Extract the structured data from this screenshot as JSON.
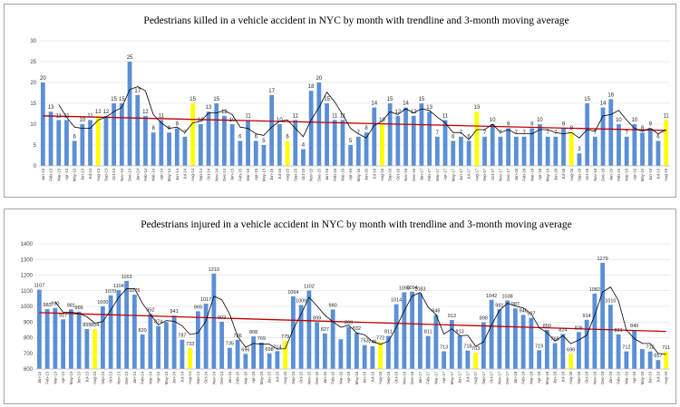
{
  "colors": {
    "bar": "#5b8fd6",
    "highlight": "#ffff00",
    "trend": "#c00000",
    "moving_avg": "#000000",
    "grid": "#d9d9d9"
  },
  "chart_data": [
    {
      "type": "bar",
      "title": "Pedestrians killed in a vehicle accident  in NYC  by month with trendline and 3-month moving average",
      "categories": [
        "Jan-13",
        "Feb-13",
        "Mar-13",
        "Apr-13",
        "May-13",
        "Jun-13",
        "Jul-13",
        "Aug-13",
        "Sep-13",
        "Oct-13",
        "Nov-13",
        "Dec-13",
        "Jan-14",
        "Feb-14",
        "Mar-14",
        "Apr-14",
        "May-14",
        "Jun-14",
        "Jul-14",
        "Aug-14",
        "Sep-14",
        "Oct-14",
        "Nov-14",
        "Dec-14",
        "Jan-15",
        "Feb-15",
        "Mar-15",
        "Apr-15",
        "May-15",
        "Jun-15",
        "Jul-15",
        "Aug-15",
        "Sep-15",
        "Oct-15",
        "Nov-15",
        "Dec-15",
        "Jan-16",
        "Feb-16",
        "Mar-16",
        "Apr-16",
        "May-16",
        "Jun-16",
        "Jul-16",
        "Aug-16",
        "Sep-16",
        "Oct-16",
        "Nov-16",
        "Dec-16",
        "Jan-17",
        "Feb-17",
        "Mar-17",
        "Apr-17",
        "May-17",
        "Jun-17",
        "Jul-17",
        "Aug-17",
        "Sep-17",
        "Oct-17",
        "Nov-17",
        "Dec-17",
        "Jan-18",
        "Feb-18",
        "Mar-18",
        "Apr-18",
        "May-18",
        "Jun-18",
        "Jul-18",
        "Aug-18",
        "Sep-18",
        "Oct-18",
        "Nov-18",
        "Dec-18",
        "Jan-19",
        "Feb-19",
        "Mar-19",
        "Apr-19",
        "May-19",
        "Jun-19",
        "Jul-19",
        "Aug-19"
      ],
      "values": [
        20,
        13,
        11,
        11,
        6,
        10,
        11,
        12,
        12,
        15,
        15,
        25,
        17,
        12,
        8,
        11,
        8,
        9,
        7,
        15,
        10,
        13,
        15,
        12,
        10,
        6,
        11,
        6,
        5,
        17,
        10,
        6,
        11,
        4,
        18,
        20,
        15,
        11,
        11,
        5,
        7,
        8,
        14,
        10,
        15,
        12,
        14,
        12,
        15,
        13,
        7,
        11,
        6,
        7,
        6,
        13,
        7,
        10,
        7,
        9,
        7,
        7,
        9,
        10,
        7,
        7,
        9,
        8,
        3,
        15,
        7,
        14,
        16,
        10,
        7,
        10,
        8,
        9,
        6,
        11
      ],
      "highlight": [
        7,
        19,
        31,
        43,
        55,
        67,
        79
      ],
      "moving_average": [
        null,
        null,
        14.7,
        11.7,
        9.3,
        9.0,
        9.0,
        11.0,
        11.7,
        13.0,
        14.0,
        18.3,
        19.0,
        18.0,
        12.3,
        10.3,
        9.0,
        9.3,
        8.0,
        10.3,
        10.7,
        12.7,
        12.7,
        13.3,
        12.3,
        9.3,
        9.0,
        7.7,
        7.3,
        9.3,
        10.7,
        11.0,
        9.0,
        7.0,
        11.0,
        14.0,
        17.7,
        15.3,
        12.3,
        9.0,
        7.7,
        6.7,
        9.7,
        10.7,
        13.0,
        12.3,
        13.7,
        12.7,
        13.7,
        13.3,
        11.7,
        10.3,
        8.0,
        8.0,
        6.3,
        8.7,
        8.7,
        10.0,
        8.0,
        8.7,
        7.7,
        7.7,
        7.7,
        8.7,
        8.7,
        8.0,
        7.7,
        8.0,
        6.7,
        8.7,
        8.3,
        12.0,
        12.3,
        13.3,
        11.0,
        9.0,
        8.3,
        9.0,
        7.7,
        8.7
      ],
      "trendline": [
        12.0,
        8.5
      ],
      "yticks": [
        "0",
        "5",
        "10",
        "15",
        "20",
        "25",
        "30"
      ],
      "ylim": [
        0,
        30
      ]
    },
    {
      "type": "bar",
      "title": "Pedestrians injured in a vehicle accident in NYC by month with trendline and 3-month moving average",
      "categories": [
        "Jan-13",
        "Feb-13",
        "Mar-13",
        "Apr-13",
        "May-13",
        "Jun-13",
        "Jul-13",
        "Aug-13",
        "Sep-13",
        "Oct-13",
        "Nov-13",
        "Dec-13",
        "Jan-14",
        "Feb-14",
        "Mar-14",
        "Apr-14",
        "May-14",
        "Jun-14",
        "Jul-14",
        "Aug-14",
        "Sep-14",
        "Oct-14",
        "Nov-14",
        "Dec-14",
        "Jan-15",
        "Feb-15",
        "Mar-15",
        "Apr-15",
        "May-15",
        "Jun-15",
        "Jul-15",
        "Aug-15",
        "Sep-15",
        "Oct-15",
        "Nov-15",
        "Dec-15",
        "Jan-16",
        "Feb-16",
        "Mar-16",
        "Apr-16",
        "May-16",
        "Jun-16",
        "Jul-16",
        "Aug-16",
        "Sep-16",
        "Oct-16",
        "Nov-16",
        "Dec-16",
        "Jan-17",
        "Feb-17",
        "Mar-17",
        "Apr-17",
        "May-17",
        "Jun-17",
        "Jul-17",
        "Aug-17",
        "Sep-17",
        "Oct-17",
        "Nov-17",
        "Dec-17",
        "Jan-18",
        "Feb-18",
        "Mar-18",
        "Apr-18",
        "May-18",
        "Jun-18",
        "Jul-18",
        "Aug-18",
        "Sep-18",
        "Oct-18",
        "Nov-18",
        "Dec-18",
        "Jan-19",
        "Feb-19",
        "Mar-19",
        "Apr-19",
        "May-19",
        "Jun-19",
        "Jul-19",
        "Aug-19"
      ],
      "values": [
        1107,
        983,
        990,
        917,
        981,
        966,
        855,
        854,
        1000,
        1070,
        1104,
        1163,
        1075,
        820,
        952,
        874,
        900,
        941,
        787,
        733,
        969,
        1017,
        1210,
        902,
        735,
        786,
        696,
        808,
        769,
        698,
        714,
        779,
        1064,
        1009,
        1102,
        899,
        827,
        980,
        790,
        869,
        832,
        753,
        745,
        772,
        811,
        1014,
        1090,
        1094,
        1083,
        811,
        946,
        713,
        913,
        813,
        718,
        703,
        898,
        1042,
        981,
        1038,
        987,
        946,
        927,
        719,
        850,
        765,
        824,
        696,
        836,
        914,
        1082,
        1279,
        1010,
        821,
        712,
        849,
        727,
        712,
        657,
        711
      ],
      "highlight": [
        7,
        19,
        31,
        43,
        55,
        67,
        79
      ],
      "labels": [
        1107,
        983,
        990,
        917,
        981,
        966,
        855,
        854,
        1000,
        1070,
        1104,
        1163,
        1075,
        820,
        952,
        874,
        null,
        941,
        787,
        733,
        969,
        1017,
        1210,
        902,
        735,
        786,
        696,
        808,
        769,
        698,
        714,
        779,
        1064,
        1009,
        1102,
        899,
        827,
        980,
        null,
        869,
        832,
        753,
        745,
        772,
        811,
        1014,
        1090,
        1094,
        1083,
        811,
        946,
        713,
        913,
        813,
        718,
        703,
        898,
        1042,
        981,
        1038,
        987,
        946,
        927,
        719,
        850,
        765,
        824,
        696,
        836,
        914,
        1082,
        1279,
        1010,
        821,
        712,
        849,
        null,
        712,
        657,
        711
      ],
      "moving_average": [
        null,
        null,
        1027,
        963,
        963,
        955,
        934,
        892,
        903,
        975,
        1058,
        1112,
        1114,
        1019,
        949,
        882,
        909,
        905,
        876,
        820,
        830,
        906,
        1065,
        1043,
        949,
        808,
        739,
        763,
        758,
        758,
        727,
        730,
        852,
        951,
        1058,
        1003,
        943,
        902,
        866,
        880,
        830,
        818,
        777,
        757,
        776,
        866,
        972,
        1066,
        1089,
        996,
        947,
        823,
        857,
        813,
        815,
        745,
        773,
        881,
        974,
        1020,
        1002,
        990,
        953,
        864,
        832,
        778,
        813,
        762,
        785,
        815,
        944,
        1092,
        1124,
        1037,
        848,
        794,
        763,
        763,
        699,
        693
      ],
      "trendline": [
        960,
        840
      ],
      "yticks": [
        "600",
        "700",
        "800",
        "900",
        "1000",
        "1100",
        "1200",
        "1300",
        "1400"
      ],
      "ylim": [
        600,
        1400
      ]
    }
  ]
}
